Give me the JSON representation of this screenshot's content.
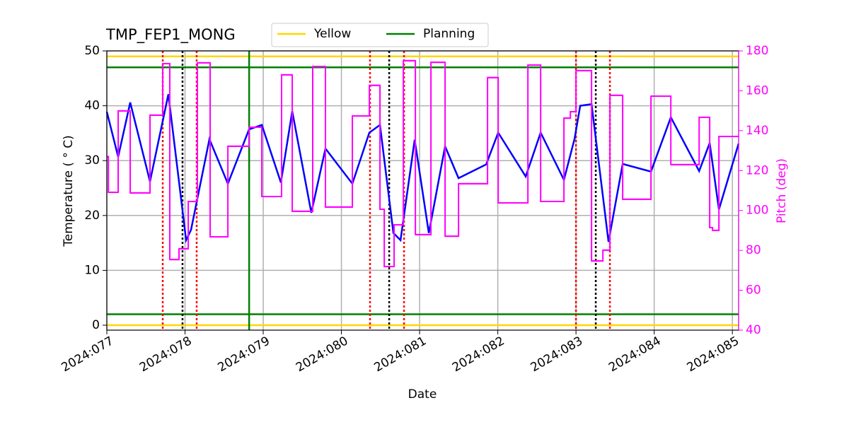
{
  "chart_data": {
    "type": "line",
    "title": "TMP_FEP1_MONG",
    "x_label": "Date",
    "y_label": "Temperature ( ° C)",
    "y2_label": "Pitch (deg)",
    "y2_color": "#ff00ff",
    "xlim": [
      77,
      85.08
    ],
    "xticks": [
      {
        "value": 77,
        "label": "2024:077"
      },
      {
        "value": 78,
        "label": "2024:078"
      },
      {
        "value": 79,
        "label": "2024:079"
      },
      {
        "value": 80,
        "label": "2024:080"
      },
      {
        "value": 81,
        "label": "2024:081"
      },
      {
        "value": 82,
        "label": "2024:082"
      },
      {
        "value": 83,
        "label": "2024:083"
      },
      {
        "value": 84,
        "label": "2024:084"
      },
      {
        "value": 85,
        "label": "2024:085"
      }
    ],
    "ylim": [
      -0.9,
      50
    ],
    "yticks": [
      0,
      10,
      20,
      30,
      40,
      50
    ],
    "y2lim": [
      40,
      180
    ],
    "y2ticks": [
      40,
      60,
      80,
      100,
      120,
      140,
      160,
      180
    ],
    "grid": true,
    "legend": "upper center",
    "series": [
      {
        "color": "#0000ff",
        "x": [
          77.0,
          77.145,
          77.299,
          77.552,
          77.787,
          78.014,
          78.077,
          78.312,
          78.548,
          78.819,
          78.982,
          79.226,
          79.371,
          79.615,
          79.796,
          80.14,
          80.357,
          80.493,
          80.665,
          80.756,
          80.937,
          81.118,
          81.326,
          81.498,
          81.851,
          82.005,
          82.357,
          82.548,
          82.846,
          82.982,
          83.054,
          83.199,
          83.416,
          83.597,
          83.959,
          84.213,
          84.575,
          84.71,
          84.828,
          85.08
        ],
        "values": [
          38.9,
          30.7,
          40.6,
          26.2,
          42.1,
          15.5,
          17.4,
          33.9,
          25.8,
          35.7,
          36.5,
          26.0,
          39.0,
          20.5,
          32.2,
          25.8,
          35.1,
          36.5,
          16.8,
          15.5,
          33.8,
          16.8,
          32.6,
          26.8,
          29.3,
          35.1,
          27.1,
          35.1,
          26.5,
          34.0,
          40.0,
          40.3,
          15.2,
          29.4,
          28.0,
          37.9,
          28.1,
          33.2,
          21.1,
          33.1
        ]
      },
      {
        "color": "#ff00ff",
        "axis": "y2",
        "step": "post",
        "x": [
          77.0,
          77.02,
          77.145,
          77.299,
          77.552,
          77.715,
          77.805,
          77.923,
          78.041,
          78.158,
          78.321,
          78.548,
          78.819,
          78.982,
          79.235,
          79.371,
          79.633,
          79.796,
          80.14,
          80.357,
          80.493,
          80.548,
          80.674,
          80.792,
          80.946,
          81.145,
          81.326,
          81.498,
          81.869,
          82.005,
          82.385,
          82.548,
          82.846,
          82.928,
          83.0,
          83.199,
          83.344,
          83.434,
          83.597,
          83.959,
          84.213,
          84.575,
          84.71,
          84.747,
          84.828
        ],
        "values": [
          127,
          109.1,
          149.9,
          108.8,
          147.8,
          173.6,
          75.4,
          80.8,
          104.5,
          174.0,
          86.8,
          132.2,
          141.7,
          107.0,
          168.0,
          99.6,
          172.2,
          101.7,
          147.4,
          162.7,
          100.6,
          71.9,
          92.8,
          175.1,
          87.9,
          174.3,
          87.1,
          113.4,
          166.6,
          103.8,
          172.9,
          104.5,
          146.3,
          149.5,
          170.1,
          74.7,
          80.1,
          157.7,
          105.6,
          157.3,
          123.0,
          146.7,
          91.4,
          90.0,
          137.1
        ]
      }
    ],
    "reference_lines": [
      {
        "name": "Yellow",
        "color": "#ffd700",
        "y": [
          0,
          49
        ]
      },
      {
        "name": "Planning",
        "color": "#008000",
        "y": [
          2,
          47
        ],
        "x": [
          78.82
        ]
      }
    ],
    "event_lines": [
      {
        "color": "#ff0000",
        "dashed": true,
        "x": [
          77.715,
          78.149,
          80.366,
          80.801,
          83.0,
          83.434
        ]
      },
      {
        "color": "#000000",
        "dashed": true,
        "x": [
          77.968,
          80.611,
          83.253
        ]
      }
    ]
  }
}
